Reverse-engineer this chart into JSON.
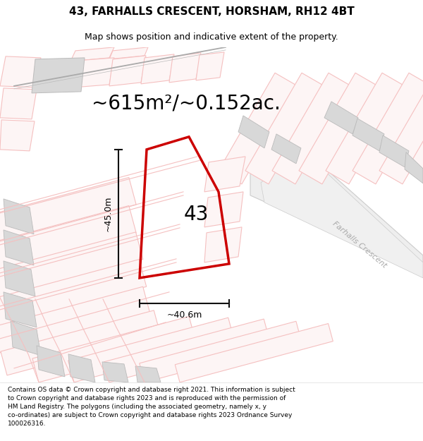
{
  "title": "43, FARHALLS CRESCENT, HORSHAM, RH12 4BT",
  "subtitle": "Map shows position and indicative extent of the property.",
  "area_text": "~615m²/~0.152ac.",
  "label_43": "43",
  "dim_vertical": "~45.0m",
  "dim_horizontal": "~40.6m",
  "road_label": "Farhalls Crescent",
  "footer": "Contains OS data © Crown copyright and database right 2021. This information is subject to Crown copyright and database rights 2023 and is reproduced with the permission of HM Land Registry. The polygons (including the associated geometry, namely x, y co-ordinates) are subject to Crown copyright and database rights 2023 Ordnance Survey 100026316.",
  "map_bg": "#faf7f7",
  "plot_edge": "#cc0000",
  "pink_line": "#f5c0c0",
  "pink_fill": "#fdf5f5",
  "gray_fill": "#d8d8d8",
  "gray_edge": "#bbbbbb",
  "diag_gray": "#999999",
  "title_fontsize": 11,
  "subtitle_fontsize": 9,
  "area_fontsize": 20,
  "label_fontsize": 20,
  "dim_fontsize": 9,
  "footer_fontsize": 6.5,
  "road_label_fontsize": 8
}
